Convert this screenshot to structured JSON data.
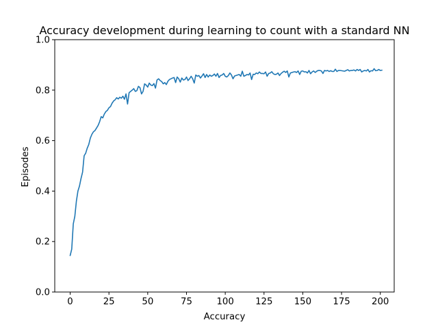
{
  "chart_data": {
    "type": "line",
    "title": "Accuracy development during learning to count with a standard NN",
    "xlabel": "Accuracy",
    "ylabel": "Episodes",
    "xlim": [
      -9.95,
      208.95
    ],
    "ylim": [
      0.0,
      1.0
    ],
    "x_ticks": [
      0,
      25,
      50,
      75,
      100,
      125,
      150,
      175,
      200
    ],
    "x_tick_labels": [
      "0",
      "25",
      "50",
      "75",
      "100",
      "125",
      "150",
      "175",
      "200"
    ],
    "y_ticks": [
      0.0,
      0.2,
      0.4,
      0.6,
      0.8,
      1.0
    ],
    "y_tick_labels": [
      "0.0",
      "0.2",
      "0.4",
      "0.6",
      "0.8",
      "1.0"
    ],
    "grid": false,
    "legend": "none",
    "line_color": "#1f77b4",
    "series": [
      {
        "x_start": 0,
        "x_step": 1,
        "values": [
          0.145,
          0.17,
          0.27,
          0.3,
          0.36,
          0.4,
          0.42,
          0.45,
          0.475,
          0.54,
          0.55,
          0.57,
          0.585,
          0.61,
          0.625,
          0.635,
          0.64,
          0.65,
          0.66,
          0.675,
          0.695,
          0.69,
          0.705,
          0.715,
          0.72,
          0.73,
          0.735,
          0.748,
          0.757,
          0.762,
          0.77,
          0.765,
          0.772,
          0.768,
          0.776,
          0.764,
          0.785,
          0.745,
          0.79,
          0.795,
          0.8,
          0.806,
          0.795,
          0.798,
          0.815,
          0.81,
          0.785,
          0.795,
          0.825,
          0.82,
          0.812,
          0.828,
          0.82,
          0.818,
          0.826,
          0.808,
          0.84,
          0.845,
          0.838,
          0.834,
          0.825,
          0.83,
          0.822,
          0.835,
          0.842,
          0.845,
          0.848,
          0.85,
          0.83,
          0.852,
          0.845,
          0.832,
          0.848,
          0.84,
          0.842,
          0.852,
          0.838,
          0.845,
          0.855,
          0.845,
          0.828,
          0.86,
          0.855,
          0.858,
          0.848,
          0.856,
          0.865,
          0.85,
          0.862,
          0.852,
          0.86,
          0.855,
          0.858,
          0.864,
          0.855,
          0.866,
          0.85,
          0.858,
          0.86,
          0.866,
          0.855,
          0.852,
          0.858,
          0.868,
          0.86,
          0.845,
          0.856,
          0.858,
          0.86,
          0.862,
          0.855,
          0.875,
          0.855,
          0.858,
          0.862,
          0.86,
          0.868,
          0.842,
          0.863,
          0.862,
          0.868,
          0.865,
          0.872,
          0.866,
          0.866,
          0.865,
          0.872,
          0.855,
          0.866,
          0.868,
          0.873,
          0.865,
          0.862,
          0.863,
          0.868,
          0.858,
          0.866,
          0.871,
          0.875,
          0.87,
          0.876,
          0.852,
          0.868,
          0.87,
          0.872,
          0.873,
          0.87,
          0.876,
          0.862,
          0.875,
          0.876,
          0.872,
          0.873,
          0.868,
          0.878,
          0.865,
          0.872,
          0.876,
          0.87,
          0.875,
          0.878,
          0.878,
          0.876,
          0.866,
          0.878,
          0.876,
          0.878,
          0.874,
          0.877,
          0.874,
          0.874,
          0.883,
          0.874,
          0.878,
          0.878,
          0.877,
          0.876,
          0.875,
          0.878,
          0.881,
          0.876,
          0.878,
          0.878,
          0.88,
          0.876,
          0.882,
          0.878,
          0.882,
          0.872,
          0.876,
          0.878,
          0.876,
          0.882,
          0.872,
          0.877,
          0.876,
          0.885,
          0.877,
          0.878,
          0.882,
          0.878,
          0.879
        ]
      }
    ]
  }
}
